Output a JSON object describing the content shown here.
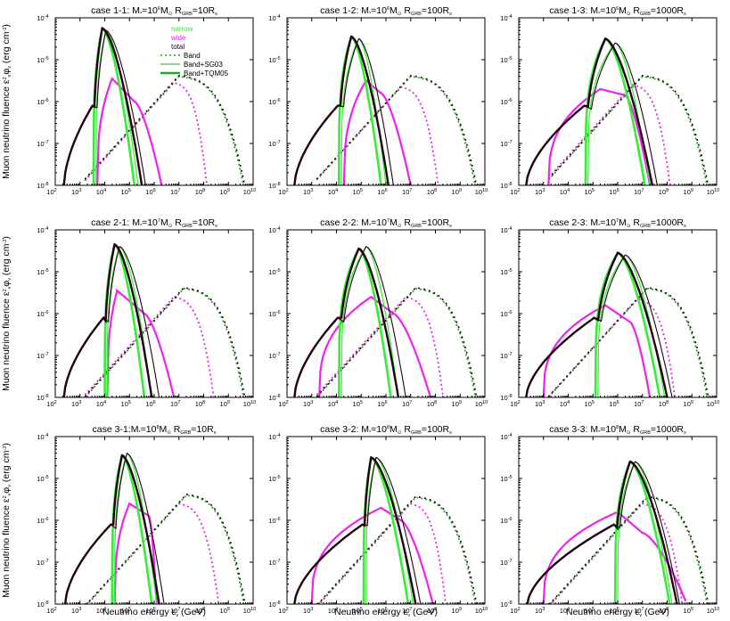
{
  "colors": {
    "narrow": "#33ee33",
    "wide": "#ee22ee",
    "total": "#220011",
    "band": "#22aa22",
    "axes": "#000000"
  },
  "chart_data": {
    "type": "line",
    "layout": "3x3 grid of log-log panels",
    "xscale": "log",
    "yscale": "log",
    "xlim": [
      100,
      10000000000
    ],
    "ylim": [
      1e-08,
      0.0001
    ],
    "xticks": [
      "10^2",
      "10^3",
      "10^4",
      "10^5",
      "10^6",
      "10^7",
      "10^8",
      "10^9",
      "10^10"
    ],
    "yticks": [
      "10^-8",
      "10^-7",
      "10^-6",
      "10^-5",
      "10^-4"
    ],
    "xlabel": "Neutrino energy ε_ν (GeV)",
    "ylabel": "Muon neutrino fluence ε_ν^2 φ_ν (erg cm^-2)",
    "legend": {
      "placement": "top-right of panel 1-1",
      "color_entries": [
        {
          "label": "narrow",
          "color": "#33ee33"
        },
        {
          "label": "wide",
          "color": "#ee22ee"
        },
        {
          "label": "total",
          "color": "#220011"
        }
      ],
      "style_entries": [
        {
          "label": "Band",
          "style": "dotted"
        },
        {
          "label": "Band+SG03",
          "style": "thin"
        },
        {
          "label": "Band+TQM05",
          "style": "thick"
        }
      ]
    },
    "panels": [
      {
        "title": {
          "c": "case 1-1: ",
          "m": "M",
          "sub": "*",
          "eq": "=10",
          "exp": "6",
          "r": "R",
          "rsub": "GRB",
          "rval": "=10R",
          "rs": "s"
        },
        "band_peak": [
          7.0,
          -5.4
        ],
        "band_wide_peak": [
          6.8,
          -5.55
        ],
        "band_wide_cut": 8.2,
        "sg_narrow": {
          "x0": 3.65,
          "peak": [
            4.05,
            -4.3
          ],
          "x1": 5.35
        },
        "tq_narrow": {
          "x0": 3.55,
          "peak": [
            3.9,
            -4.25
          ],
          "x1": 5.2
        },
        "wide": {
          "x0": 3.7,
          "peak": [
            4.3,
            -5.45
          ],
          "tail": [
            5.2,
            -6.0
          ],
          "x1": 6.3
        },
        "total_rise": {
          "x0": 2.35,
          "y_at_x0": -8.0
        }
      },
      {
        "title": {
          "c": "case 1-2: ",
          "m": "M",
          "sub": "*",
          "eq": "=10",
          "exp": "6",
          "r": "R",
          "rsub": "GRB",
          "rval": "=100R",
          "rs": "s"
        },
        "band_peak": [
          7.0,
          -5.4
        ],
        "band_wide_peak": [
          6.6,
          -5.65
        ],
        "band_wide_cut": 8.2,
        "sg_narrow": {
          "x0": 4.2,
          "peak": [
            4.9,
            -4.5
          ],
          "x1": 6.0
        },
        "tq_narrow": {
          "x0": 4.1,
          "peak": [
            4.6,
            -4.45
          ],
          "x1": 5.8
        },
        "wide": {
          "x0": 4.3,
          "peak": [
            5.2,
            -5.5
          ],
          "tail": [
            5.8,
            -5.8
          ],
          "x1": 7.0
        },
        "total_rise": {
          "x0": 2.3,
          "y_at_x0": -8.0
        }
      },
      {
        "title": {
          "c": "case 1-3: ",
          "m": "M",
          "sub": "*",
          "eq": "=10",
          "exp": "6",
          "r": "R",
          "rsub": "GRB",
          "rval": "=1000R",
          "rs": "s"
        },
        "band_peak": [
          7.0,
          -5.4
        ],
        "band_wide_peak": [
          6.6,
          -5.6
        ],
        "band_wide_cut": 8.2,
        "sg_narrow": {
          "x0": 4.8,
          "peak": [
            5.9,
            -4.6
          ],
          "x1": 7.3
        },
        "tq_narrow": {
          "x0": 4.7,
          "peak": [
            5.5,
            -4.5
          ],
          "x1": 7.1
        },
        "wide": {
          "x0": 3.2,
          "peak": [
            5.3,
            -5.7
          ],
          "tail": [
            6.3,
            -5.85
          ],
          "x1": 7.3
        },
        "total_rise": {
          "x0": 2.3,
          "y_at_x0": -8.0
        }
      },
      {
        "title": {
          "c": "case 2-1: ",
          "m": "M",
          "sub": "*",
          "eq": "=10",
          "exp": "7",
          "r": "R",
          "rsub": "GRB",
          "rval": "=10R",
          "rs": "s"
        },
        "band_peak": [
          7.2,
          -5.4
        ],
        "band_wide_peak": [
          6.8,
          -5.6
        ],
        "band_wide_cut": 8.5,
        "sg_narrow": {
          "x0": 4.1,
          "peak": [
            4.6,
            -4.4
          ],
          "x1": 5.9
        },
        "tq_narrow": {
          "x0": 4.0,
          "peak": [
            4.4,
            -4.35
          ],
          "x1": 5.6
        },
        "wide": {
          "x0": 4.1,
          "peak": [
            4.5,
            -5.45
          ],
          "tail": [
            5.6,
            -6.0
          ],
          "x1": 6.8
        },
        "total_rise": {
          "x0": 2.35,
          "y_at_x0": -8.0
        }
      },
      {
        "title": {
          "c": "case 2-2: ",
          "m": "M",
          "sub": "*",
          "eq": "=10",
          "exp": "7",
          "r": "R",
          "rsub": "GRB",
          "rval": "=100R",
          "rs": "s"
        },
        "band_peak": [
          7.2,
          -5.4
        ],
        "band_wide_peak": [
          6.8,
          -5.6
        ],
        "band_wide_cut": 8.4,
        "sg_narrow": {
          "x0": 4.2,
          "peak": [
            5.2,
            -4.4
          ],
          "x1": 6.5
        },
        "tq_narrow": {
          "x0": 4.1,
          "peak": [
            4.9,
            -4.45
          ],
          "x1": 6.2
        },
        "wide": {
          "x0": 3.3,
          "peak": [
            5.4,
            -5.6
          ],
          "tail": [
            6.3,
            -6.0
          ],
          "x1": 7.8
        },
        "total_rise": {
          "x0": 2.3,
          "y_at_x0": -8.0
        }
      },
      {
        "title": {
          "c": "case 2-3: ",
          "m": "M",
          "sub": "*",
          "eq": "=10",
          "exp": "7",
          "r": "R",
          "rsub": "GRB",
          "rval": "=1000R",
          "rs": "s"
        },
        "band_peak": [
          7.2,
          -5.4
        ],
        "band_wide_peak": [
          6.8,
          -5.65
        ],
        "band_wide_cut": 8.4,
        "sg_narrow": {
          "x0": 5.2,
          "peak": [
            6.3,
            -4.6
          ],
          "x1": 7.9
        },
        "tq_narrow": {
          "x0": 5.1,
          "peak": [
            6.0,
            -4.55
          ],
          "x1": 7.7
        },
        "wide": {
          "x0": 3.0,
          "peak": [
            5.5,
            -5.8
          ],
          "tail": [
            6.5,
            -6.2
          ],
          "x1": 7.3
        },
        "total_rise": {
          "x0": 2.3,
          "y_at_x0": -8.0
        }
      },
      {
        "title": {
          "c": "case 3-1:",
          "m": "M",
          "sub": "*",
          "eq": "=10",
          "exp": "8",
          "r": "R",
          "rsub": "GRB",
          "rval": "=10R",
          "rs": "s"
        },
        "band_peak": [
          7.3,
          -5.4
        ],
        "band_wide_peak": [
          7.0,
          -5.6
        ],
        "band_wide_cut": 8.7,
        "sg_narrow": {
          "x0": 4.4,
          "peak": [
            4.9,
            -4.4
          ],
          "x1": 6.1
        },
        "tq_narrow": {
          "x0": 4.3,
          "peak": [
            4.7,
            -4.45
          ],
          "x1": 5.9
        },
        "wide": {
          "x0": 4.4,
          "peak": [
            5.0,
            -5.6
          ],
          "tail": [
            5.8,
            -5.9
          ],
          "x1": 6.1
        },
        "total_rise": {
          "x0": 2.4,
          "y_at_x0": -8.0
        }
      },
      {
        "title": {
          "c": "case 3-2: ",
          "m": "M",
          "sub": "*",
          "eq": "=10",
          "exp": "8",
          "r": "R",
          "rsub": "GRB",
          "rval": "=100R",
          "rs": "s"
        },
        "band_peak": [
          7.2,
          -5.45
        ],
        "band_wide_peak": [
          7.0,
          -5.6
        ],
        "band_wide_cut": 8.5,
        "sg_narrow": {
          "x0": 5.2,
          "peak": [
            5.6,
            -4.5
          ],
          "x1": 7.1
        },
        "tq_narrow": {
          "x0": 5.1,
          "peak": [
            5.4,
            -4.5
          ],
          "x1": 6.9
        },
        "wide": {
          "x0": 3.0,
          "peak": [
            5.8,
            -5.7
          ],
          "tail": [
            6.6,
            -6.0
          ],
          "x1": 7.9
        },
        "total_rise": {
          "x0": 2.3,
          "y_at_x0": -8.0
        }
      },
      {
        "title": {
          "c": "case 3-3: ",
          "m": "M",
          "sub": "*",
          "eq": "=10",
          "exp": "8",
          "r": "R",
          "rsub": "GRB",
          "rval": "=1000R",
          "rs": "s"
        },
        "band_peak": [
          7.2,
          -5.45
        ],
        "band_wide_peak": [
          7.0,
          -5.6
        ],
        "band_wide_cut": 8.7,
        "sg_narrow": {
          "x0": 6.0,
          "peak": [
            6.7,
            -4.6
          ],
          "x1": 8.2
        },
        "tq_narrow": {
          "x0": 5.9,
          "peak": [
            6.5,
            -4.6
          ],
          "x1": 8.1
        },
        "wide": {
          "x0": 3.0,
          "peak": [
            6.0,
            -5.8
          ],
          "tail": [
            7.0,
            -6.3
          ],
          "x1": 8.8
        },
        "total_rise": {
          "x0": 2.35,
          "y_at_x0": -8.0
        }
      }
    ]
  }
}
